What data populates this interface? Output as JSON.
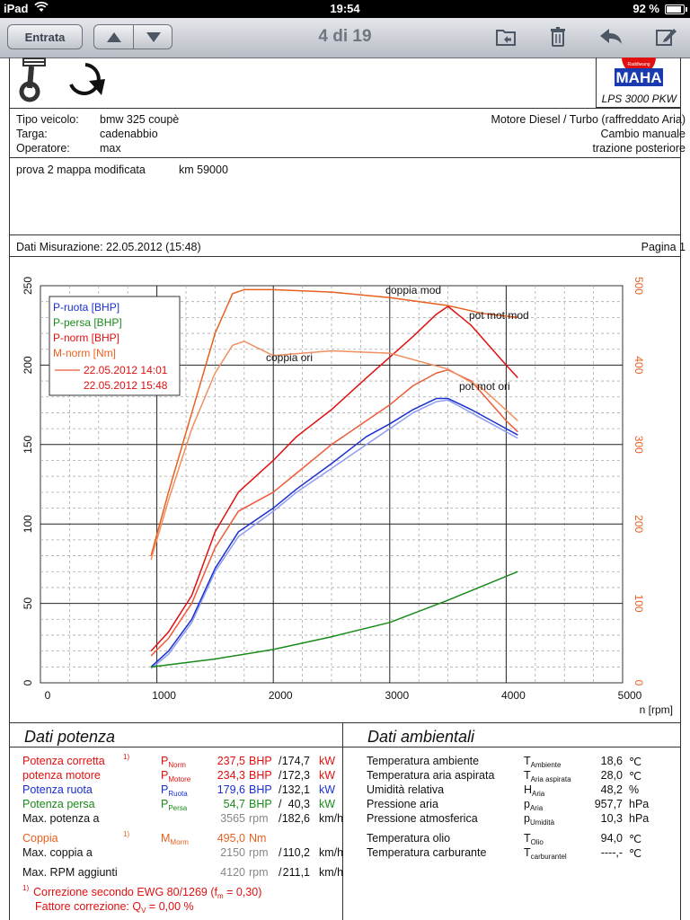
{
  "statusbar": {
    "device": "iPad",
    "time": "19:54",
    "battery": "92 %"
  },
  "toolbar": {
    "back_label": "Entrata",
    "counter": "4 di 19"
  },
  "doc": {
    "logo": {
      "brand": "MAHA",
      "tagline": "Raddiwang",
      "model": "LPS 3000 PKW"
    },
    "vehicle": {
      "tipo_label": "Tipo veicolo:",
      "tipo_value": "bmw 325 coupè",
      "targa_label": "Targa:",
      "targa_value": "cadenabbio",
      "operatore_label": "Operatore:",
      "operatore_value": "max",
      "engine": "Motore Diesel / Turbo (raffreddato Aria)",
      "gearbox": "Cambio manuale",
      "drive": "trazione posteriore"
    },
    "notes": {
      "test": "prova 2 mappa modificata",
      "km": "km 59000"
    },
    "measure": {
      "date": "Dati Misurazione: 22.05.2012 (15:48)",
      "page": "Pagina 1"
    }
  },
  "chart_data": {
    "type": "line",
    "xlabel": "n [rpm]",
    "xlim": [
      0,
      5000
    ],
    "x_ticks": [
      "0",
      "1000",
      "2000",
      "3000",
      "4000",
      "5000"
    ],
    "y_left_lim": [
      0,
      250
    ],
    "y_left_ticks": [
      "0",
      "50",
      "100",
      "150",
      "200",
      "250"
    ],
    "y_right_lim": [
      0,
      500
    ],
    "y_right_ticks": [
      "0",
      "100",
      "200",
      "300",
      "400",
      "500"
    ],
    "legend": {
      "position": "top-left",
      "entries": [
        {
          "label": "P-ruota [BHP]",
          "color": "#1a2fd0"
        },
        {
          "label": "P-persa [BHP]",
          "color": "#1a8a1a"
        },
        {
          "label": "P-norm [BHP]",
          "color": "#e01010"
        },
        {
          "label": "M-norm [Nm]",
          "color": "#e86020"
        }
      ],
      "runs": [
        "22.05.2012 14:01",
        "22.05.2012 15:48"
      ]
    },
    "annotations": [
      "coppia mod",
      "pot mot mod",
      "coppia ori",
      "pot mot ori"
    ],
    "series": [
      {
        "name": "P-norm [BHP]",
        "run": "22.05.2012 15:48",
        "axis": "left",
        "color": "#e01010",
        "x": [
          950,
          1100,
          1300,
          1500,
          1700,
          2000,
          2200,
          2500,
          2800,
          3000,
          3200,
          3400,
          3500,
          3700,
          4000,
          4100
        ],
        "y": [
          20,
          32,
          55,
          95,
          120,
          140,
          155,
          172,
          192,
          205,
          218,
          232,
          237,
          225,
          200,
          192
        ]
      },
      {
        "name": "P-norm [BHP]",
        "run": "22.05.2012 14:01",
        "axis": "left",
        "color": "#ee5a3a",
        "x": [
          950,
          1100,
          1300,
          1500,
          1700,
          2000,
          2200,
          2500,
          2800,
          3000,
          3200,
          3400,
          3500,
          3700,
          4000,
          4100
        ],
        "y": [
          17,
          28,
          50,
          85,
          108,
          120,
          132,
          150,
          165,
          175,
          187,
          195,
          197,
          190,
          165,
          158
        ]
      },
      {
        "name": "P-ruota [BHP]",
        "run": "22.05.2012 15:48",
        "axis": "left",
        "color": "#1a2fd0",
        "x": [
          950,
          1100,
          1300,
          1500,
          1700,
          2000,
          2200,
          2500,
          2800,
          3000,
          3200,
          3400,
          3500,
          3700,
          4000,
          4100
        ],
        "y": [
          10,
          20,
          40,
          72,
          95,
          110,
          122,
          138,
          155,
          163,
          172,
          179,
          179,
          172,
          160,
          156
        ]
      },
      {
        "name": "P-ruota [BHP]",
        "run": "22.05.2012 14:01",
        "axis": "left",
        "color": "#8f9cf0",
        "x": [
          950,
          1100,
          1300,
          1500,
          1700,
          2000,
          2200,
          2500,
          2800,
          3000,
          3200,
          3400,
          3500,
          3700,
          4000,
          4100
        ],
        "y": [
          9,
          18,
          38,
          70,
          92,
          108,
          120,
          135,
          150,
          160,
          170,
          177,
          178,
          170,
          158,
          154
        ]
      },
      {
        "name": "P-persa [BHP]",
        "run": "22.05.2012 15:48",
        "axis": "left",
        "color": "#1a8a1a",
        "x": [
          950,
          1500,
          2000,
          2500,
          3000,
          3500,
          4100
        ],
        "y": [
          10,
          15,
          21,
          29,
          38,
          52,
          70
        ]
      },
      {
        "name": "M-norm [Nm]",
        "run": "22.05.2012 15:48",
        "axis": "right",
        "color": "#e86020",
        "x": [
          950,
          1100,
          1300,
          1500,
          1650,
          1750,
          2000,
          2500,
          3000,
          3500,
          3800,
          4100
        ],
        "y": [
          160,
          240,
          340,
          440,
          490,
          495,
          495,
          492,
          485,
          475,
          465,
          460
        ]
      },
      {
        "name": "M-norm [Nm]",
        "run": "22.05.2012 14:01",
        "axis": "right",
        "color": "#f09060",
        "x": [
          950,
          1100,
          1300,
          1500,
          1650,
          1750,
          2000,
          2500,
          3000,
          3500,
          3800,
          4100
        ],
        "y": [
          155,
          230,
          320,
          390,
          425,
          430,
          412,
          418,
          415,
          395,
          370,
          330
        ]
      }
    ]
  },
  "power": {
    "title": "Dati potenza",
    "rows": [
      {
        "label": "Potenza corretta",
        "note": "1)",
        "sym": "P",
        "sub": "Norm",
        "v1": "237,5",
        "u1": "BHP",
        "sep": "/",
        "v2": "174,7",
        "u2": "kW",
        "color": "#e01010"
      },
      {
        "label": "potenza motore",
        "note": "",
        "sym": "P",
        "sub": "Motore",
        "v1": "234,3",
        "u1": "BHP",
        "sep": "/",
        "v2": "172,3",
        "u2": "kW",
        "color": "#e01010"
      },
      {
        "label": "Potenza ruota",
        "note": "",
        "sym": "P",
        "sub": "Ruota",
        "v1": "179,6",
        "u1": "BHP",
        "sep": "/",
        "v2": "132,1",
        "u2": "kW",
        "color": "#1a2fd0"
      },
      {
        "label": "Potenza persa",
        "note": "",
        "sym": "P",
        "sub": "Persa",
        "v1": "54,7",
        "u1": "BHP",
        "sep": "/",
        "v2": "40,3",
        "u2": "kW",
        "color": "#1a8a1a"
      },
      {
        "label": "Max. potenza a",
        "note": "",
        "sym": "",
        "sub": "",
        "v1": "3565",
        "u1": "rpm",
        "sep": "/",
        "v2": "182,6",
        "u2": "km/h",
        "color": "#111111"
      },
      {
        "label": "Coppia",
        "note": "1)",
        "sym": "M",
        "sub": "Morm",
        "v1": "495,0",
        "u1": "Nm",
        "sep": "",
        "v2": "",
        "u2": "",
        "color": "#e86020"
      },
      {
        "label": "Max. coppia a",
        "note": "",
        "sym": "",
        "sub": "",
        "v1": "2150",
        "u1": "rpm",
        "sep": "/",
        "v2": "110,2",
        "u2": "km/h",
        "color": "#111111"
      },
      {
        "label": "Max. RPM aggiunti",
        "note": "",
        "sym": "",
        "sub": "",
        "v1": "4120",
        "u1": "rpm",
        "sep": "/",
        "v2": "211,1",
        "u2": "km/h",
        "color": "#111111"
      }
    ],
    "footnote1": "Correzione secondo EWG 80/1269 (f",
    "footnote1_sub": "m",
    "footnote1_end": " =  0,30)",
    "footnote2": "Fattore correzione: Q",
    "footnote2_sub": "V",
    "footnote2_end": " =   0,00 %",
    "footnote_mark": "1)"
  },
  "ambient": {
    "title": "Dati ambientali",
    "rows": [
      {
        "label": "Temperatura ambiente",
        "sym": "T",
        "sub": "Ambiente",
        "value": "18,6",
        "unit": "℃"
      },
      {
        "label": "Temperatura aria aspirata",
        "sym": "T",
        "sub": "Aria aspirata",
        "value": "28,0",
        "unit": "℃"
      },
      {
        "label": "Umidità relativa",
        "sym": "H",
        "sub": "Aria",
        "value": "48,2",
        "unit": "%"
      },
      {
        "label": "Pressione aria",
        "sym": "p",
        "sub": "Aria",
        "value": "957,7",
        "unit": "hPa"
      },
      {
        "label": "Pressione atmosferica",
        "sym": "p",
        "sub": "Umidità",
        "value": "10,3",
        "unit": "hPa"
      },
      {
        "label": "Temperatura olio",
        "sym": "T",
        "sub": "Olio",
        "value": "94,0",
        "unit": "℃"
      },
      {
        "label": "Temperatura carburante",
        "sym": "T",
        "sub": "carburantel",
        "value": "----,-",
        "unit": "℃"
      }
    ]
  }
}
